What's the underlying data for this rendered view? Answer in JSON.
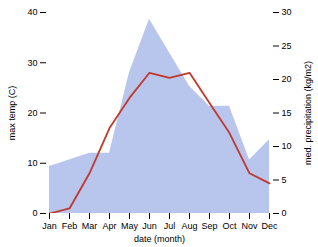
{
  "chart_data": {
    "type": "line",
    "categories": [
      "Jan",
      "Feb",
      "Mar",
      "Apr",
      "May",
      "Jun",
      "Jul",
      "Aug",
      "Sep",
      "Oct",
      "Nov",
      "Dec"
    ],
    "xlabel": "date (month)",
    "ylabel": "max temp (C)",
    "y2label": "med. precipitation (kg/m2)",
    "ylim": [
      0,
      40
    ],
    "yticks": [
      0,
      10,
      20,
      30,
      40
    ],
    "y2lim": [
      0,
      30
    ],
    "y2ticks": [
      0,
      5,
      10,
      15,
      20,
      25,
      30
    ],
    "grid": false,
    "series": [
      {
        "type": "area",
        "axis": "y2",
        "color": "#b8c5ed",
        "values": [
          7,
          8,
          9,
          9,
          21,
          29,
          24,
          19,
          16,
          16,
          8,
          11
        ]
      },
      {
        "type": "line",
        "color": "#c0392b",
        "values": [
          0,
          1,
          8,
          17,
          23,
          28,
          27,
          28,
          22,
          16,
          8,
          6
        ]
      }
    ]
  }
}
